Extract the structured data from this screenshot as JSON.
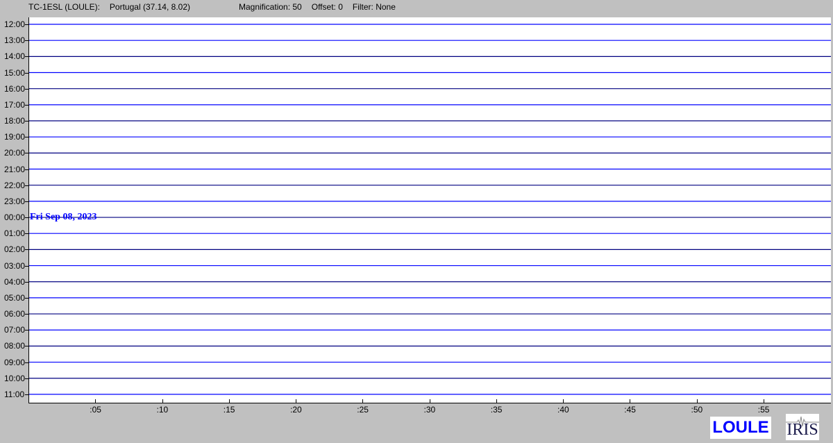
{
  "header": {
    "station": "TC-1ESL (LOULE):",
    "location": "Portugal (37.14, 8.02)",
    "magnification": "Magnification: 50",
    "offset": "Offset: 0",
    "filter": "Filter: None"
  },
  "date_label": "Fri Sep 08, 2023",
  "station_logo": "LOULE",
  "iris_logo": "IRIS",
  "chart_data": {
    "type": "line",
    "title": "",
    "y_tick_labels": [
      "12:00",
      "13:00",
      "14:00",
      "15:00",
      "16:00",
      "17:00",
      "18:00",
      "19:00",
      "20:00",
      "21:00",
      "22:00",
      "23:00",
      "00:00",
      "01:00",
      "02:00",
      "03:00",
      "04:00",
      "05:00",
      "06:00",
      "07:00",
      "08:00",
      "09:00",
      "10:00",
      "11:00"
    ],
    "x_tick_labels": [
      ":05",
      ":10",
      ":15",
      ":20",
      ":25",
      ":30",
      ":35",
      ":40",
      ":45",
      ":50",
      ":55"
    ],
    "x_tick_values": [
      5,
      10,
      15,
      20,
      25,
      30,
      35,
      40,
      45,
      50,
      55
    ],
    "xlim": [
      0,
      60
    ],
    "trace_colors": [
      "#0000ff",
      "#000080"
    ],
    "series_note_values": "flat traces (no visible signal)"
  }
}
